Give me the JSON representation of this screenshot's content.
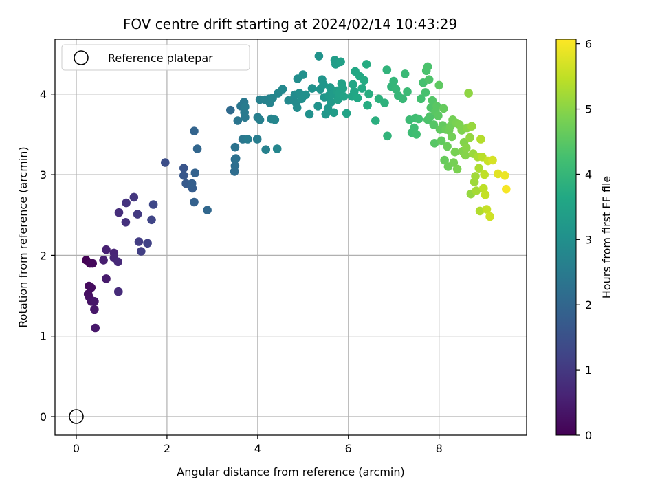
{
  "chart_data": {
    "type": "scatter",
    "title": "FOV centre drift starting at 2024/02/14 10:43:29",
    "xlabel": "Angular distance from reference (arcmin)",
    "ylabel": "Rotation from reference (arcmin)",
    "xlim": [
      -0.47,
      9.93
    ],
    "ylim": [
      -0.23,
      4.68
    ],
    "xticks": [
      0,
      2,
      4,
      6,
      8
    ],
    "yticks": [
      0,
      1,
      2,
      3,
      4
    ],
    "grid": true,
    "legend": {
      "placement": "top-left",
      "entries": [
        "Reference platepar"
      ]
    },
    "reference_point": {
      "x": 0,
      "y": 0,
      "marker": "open-circle"
    },
    "colorbar": {
      "label": "Hours from first FF file",
      "range": [
        0,
        6.07
      ],
      "ticks": [
        0,
        1,
        2,
        3,
        4,
        5,
        6
      ],
      "colormap": "viridis"
    },
    "points": [
      [
        0.22,
        1.94,
        0.0
      ],
      [
        0.3,
        1.9,
        0.08
      ],
      [
        0.36,
        1.9,
        0.12
      ],
      [
        0.28,
        1.62,
        0.16
      ],
      [
        0.33,
        1.6,
        0.2
      ],
      [
        0.26,
        1.52,
        0.24
      ],
      [
        0.29,
        1.48,
        0.28
      ],
      [
        0.33,
        1.43,
        0.32
      ],
      [
        0.4,
        1.43,
        0.36
      ],
      [
        0.4,
        1.33,
        0.38
      ],
      [
        0.42,
        1.1,
        0.4
      ],
      [
        0.66,
        1.71,
        0.45
      ],
      [
        0.6,
        1.94,
        0.5
      ],
      [
        0.66,
        2.07,
        0.55
      ],
      [
        0.83,
        2.03,
        0.6
      ],
      [
        0.83,
        1.97,
        0.65
      ],
      [
        0.92,
        1.92,
        0.7
      ],
      [
        0.93,
        1.55,
        0.74
      ],
      [
        0.94,
        2.53,
        0.8
      ],
      [
        1.09,
        2.41,
        0.86
      ],
      [
        1.1,
        2.65,
        0.9
      ],
      [
        1.27,
        2.72,
        0.96
      ],
      [
        1.35,
        2.51,
        1.02
      ],
      [
        1.38,
        2.17,
        1.08
      ],
      [
        1.43,
        2.05,
        1.12
      ],
      [
        1.57,
        2.15,
        1.18
      ],
      [
        1.66,
        2.44,
        1.24
      ],
      [
        1.7,
        2.63,
        1.3
      ],
      [
        1.96,
        3.15,
        1.45
      ],
      [
        2.37,
        3.08,
        1.6
      ],
      [
        2.37,
        2.99,
        1.65
      ],
      [
        2.42,
        2.89,
        1.7
      ],
      [
        2.53,
        2.86,
        1.75
      ],
      [
        2.56,
        2.83,
        1.78
      ],
      [
        2.55,
        2.89,
        1.82
      ],
      [
        2.6,
        2.66,
        1.86
      ],
      [
        2.62,
        3.02,
        1.9
      ],
      [
        2.6,
        3.54,
        1.94
      ],
      [
        2.67,
        3.32,
        1.98
      ],
      [
        2.89,
        2.56,
        2.02
      ],
      [
        3.4,
        3.8,
        2.1
      ],
      [
        3.49,
        3.04,
        2.15
      ],
      [
        3.5,
        3.11,
        2.18
      ],
      [
        3.5,
        3.19,
        2.22
      ],
      [
        3.52,
        3.2,
        2.25
      ],
      [
        3.5,
        3.34,
        2.3
      ],
      [
        3.56,
        3.67,
        2.35
      ],
      [
        3.63,
        3.85,
        2.38
      ],
      [
        3.67,
        3.44,
        2.4
      ],
      [
        3.7,
        3.9,
        2.43
      ],
      [
        3.72,
        3.71,
        2.46
      ],
      [
        3.71,
        3.77,
        2.48
      ],
      [
        3.72,
        3.84,
        2.5
      ],
      [
        3.78,
        3.44,
        2.53
      ],
      [
        3.99,
        3.44,
        2.56
      ],
      [
        4.0,
        3.71,
        2.58
      ],
      [
        4.05,
        3.68,
        2.6
      ],
      [
        4.05,
        3.93,
        2.62
      ],
      [
        4.18,
        3.31,
        2.64
      ],
      [
        4.16,
        3.93,
        2.66
      ],
      [
        4.25,
        3.94,
        2.68
      ],
      [
        4.27,
        3.89,
        2.7
      ],
      [
        4.3,
        3.69,
        2.72
      ],
      [
        4.33,
        3.95,
        2.74
      ],
      [
        4.38,
        3.68,
        2.76
      ],
      [
        4.43,
        3.32,
        2.78
      ],
      [
        4.45,
        4.01,
        2.8
      ],
      [
        4.55,
        4.06,
        2.82
      ],
      [
        4.68,
        3.92,
        2.84
      ],
      [
        4.78,
        3.93,
        2.86
      ],
      [
        4.82,
        3.99,
        2.88
      ],
      [
        4.85,
        3.89,
        2.9
      ],
      [
        4.87,
        3.83,
        2.92
      ],
      [
        4.88,
        4.19,
        2.94
      ],
      [
        4.92,
        4.01,
        2.96
      ],
      [
        4.97,
        3.94,
        2.98
      ],
      [
        5.0,
        4.24,
        3.0
      ],
      [
        5.06,
        3.99,
        3.02
      ],
      [
        5.14,
        3.75,
        3.04
      ],
      [
        5.2,
        4.07,
        3.06
      ],
      [
        5.33,
        3.85,
        3.08
      ],
      [
        5.35,
        4.47,
        3.1
      ],
      [
        5.38,
        4.06,
        3.12
      ],
      [
        5.42,
        4.18,
        3.14
      ],
      [
        5.45,
        4.12,
        3.16
      ],
      [
        5.47,
        3.96,
        3.18
      ],
      [
        5.5,
        3.75,
        3.2
      ],
      [
        5.55,
        3.82,
        3.22
      ],
      [
        5.57,
        3.98,
        3.24
      ],
      [
        5.6,
        4.08,
        3.26
      ],
      [
        5.62,
        3.9,
        3.28
      ],
      [
        5.65,
        4.0,
        3.3
      ],
      [
        5.68,
        3.77,
        3.32
      ],
      [
        5.7,
        4.42,
        3.34
      ],
      [
        5.72,
        4.37,
        3.36
      ],
      [
        5.75,
        4.04,
        3.38
      ],
      [
        5.77,
        3.93,
        3.4
      ],
      [
        5.8,
        4.01,
        3.42
      ],
      [
        5.83,
        4.4,
        3.44
      ],
      [
        5.85,
        4.13,
        3.46
      ],
      [
        5.88,
        4.07,
        3.48
      ],
      [
        5.9,
        3.97,
        3.5
      ],
      [
        5.96,
        3.76,
        3.52
      ],
      [
        6.08,
        3.97,
        3.56
      ],
      [
        6.1,
        4.12,
        3.58
      ],
      [
        6.13,
        4.03,
        3.6
      ],
      [
        6.15,
        4.28,
        3.62
      ],
      [
        6.2,
        3.95,
        3.64
      ],
      [
        6.25,
        4.22,
        3.66
      ],
      [
        6.3,
        4.07,
        3.68
      ],
      [
        6.35,
        4.17,
        3.7
      ],
      [
        6.4,
        4.37,
        3.72
      ],
      [
        6.42,
        3.86,
        3.74
      ],
      [
        6.45,
        4.0,
        3.76
      ],
      [
        6.6,
        3.67,
        3.8
      ],
      [
        6.67,
        3.94,
        3.84
      ],
      [
        6.8,
        3.89,
        3.88
      ],
      [
        6.85,
        4.3,
        3.92
      ],
      [
        6.86,
        3.48,
        3.94
      ],
      [
        6.95,
        4.09,
        3.96
      ],
      [
        7.0,
        4.16,
        3.98
      ],
      [
        7.05,
        4.06,
        4.0
      ],
      [
        7.1,
        3.98,
        4.02
      ],
      [
        7.2,
        3.94,
        4.05
      ],
      [
        7.25,
        4.25,
        4.08
      ],
      [
        7.3,
        4.03,
        4.1
      ],
      [
        7.35,
        3.68,
        4.12
      ],
      [
        7.4,
        3.52,
        4.14
      ],
      [
        7.45,
        3.58,
        4.16
      ],
      [
        7.48,
        3.7,
        4.18
      ],
      [
        7.5,
        3.5,
        4.2
      ],
      [
        7.55,
        3.69,
        4.22
      ],
      [
        7.6,
        3.94,
        4.24
      ],
      [
        7.65,
        4.14,
        4.26
      ],
      [
        7.7,
        4.02,
        4.28
      ],
      [
        7.72,
        4.29,
        4.3
      ],
      [
        7.75,
        4.34,
        4.32
      ],
      [
        7.75,
        3.68,
        4.34
      ],
      [
        7.78,
        4.18,
        4.36
      ],
      [
        7.8,
        3.72,
        4.38
      ],
      [
        7.82,
        3.83,
        4.4
      ],
      [
        7.85,
        3.92,
        4.42
      ],
      [
        7.88,
        3.62,
        4.44
      ],
      [
        7.9,
        3.39,
        4.46
      ],
      [
        7.92,
        3.78,
        4.48
      ],
      [
        7.95,
        3.85,
        4.5
      ],
      [
        7.98,
        3.73,
        4.52
      ],
      [
        8.0,
        4.11,
        4.54
      ],
      [
        8.02,
        3.56,
        4.56
      ],
      [
        8.05,
        3.42,
        4.58
      ],
      [
        8.08,
        3.61,
        4.6
      ],
      [
        8.1,
        3.82,
        4.62
      ],
      [
        8.12,
        3.18,
        4.64
      ],
      [
        8.15,
        3.56,
        4.66
      ],
      [
        8.18,
        3.35,
        4.68
      ],
      [
        8.2,
        3.1,
        4.7
      ],
      [
        8.22,
        3.55,
        4.72
      ],
      [
        8.25,
        3.6,
        4.74
      ],
      [
        8.28,
        3.47,
        4.76
      ],
      [
        8.3,
        3.68,
        4.78
      ],
      [
        8.32,
        3.15,
        4.8
      ],
      [
        8.35,
        3.28,
        4.82
      ],
      [
        8.38,
        3.64,
        4.84
      ],
      [
        8.4,
        3.07,
        4.86
      ],
      [
        8.45,
        3.62,
        4.88
      ],
      [
        8.5,
        3.55,
        4.9
      ],
      [
        8.52,
        3.29,
        4.92
      ],
      [
        8.55,
        3.4,
        4.94
      ],
      [
        8.58,
        3.24,
        4.96
      ],
      [
        8.6,
        3.33,
        4.98
      ],
      [
        8.62,
        3.58,
        5.0
      ],
      [
        8.65,
        4.01,
        5.05
      ],
      [
        8.68,
        3.46,
        5.08
      ],
      [
        8.7,
        2.76,
        5.1
      ],
      [
        8.72,
        3.6,
        5.12
      ],
      [
        8.75,
        3.26,
        5.15
      ],
      [
        8.78,
        2.91,
        5.18
      ],
      [
        8.8,
        2.98,
        5.22
      ],
      [
        8.82,
        2.8,
        5.25
      ],
      [
        8.85,
        3.22,
        5.28
      ],
      [
        8.88,
        3.08,
        5.32
      ],
      [
        8.9,
        2.55,
        5.35
      ],
      [
        8.92,
        3.44,
        5.38
      ],
      [
        8.95,
        3.22,
        5.42
      ],
      [
        8.98,
        2.83,
        5.45
      ],
      [
        9.0,
        3.0,
        5.48
      ],
      [
        9.02,
        2.75,
        5.52
      ],
      [
        9.05,
        2.57,
        5.55
      ],
      [
        9.08,
        3.17,
        5.58
      ],
      [
        9.12,
        2.48,
        5.62
      ],
      [
        9.18,
        3.18,
        5.7
      ],
      [
        9.3,
        3.01,
        5.8
      ],
      [
        9.45,
        2.99,
        5.9
      ],
      [
        9.48,
        2.82,
        6.0
      ]
    ]
  }
}
